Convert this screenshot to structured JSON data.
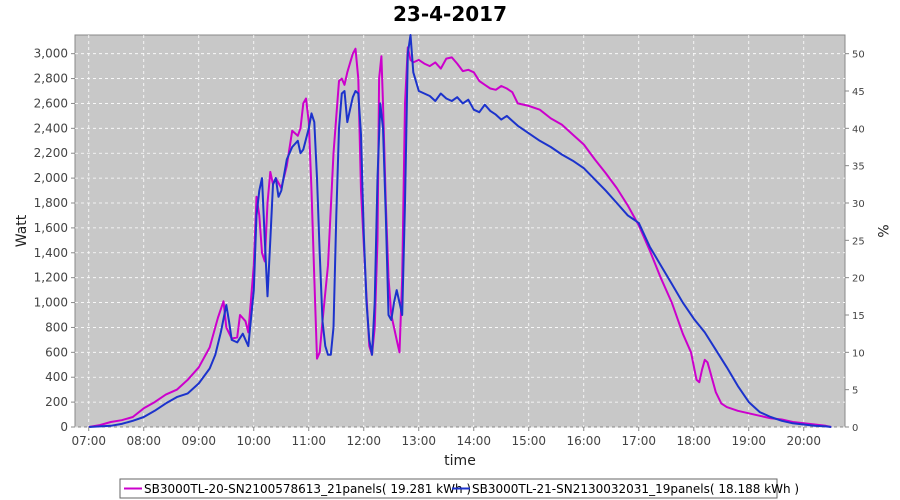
{
  "chart_data": {
    "type": "line",
    "title": "23-4-2017",
    "xlabel": "time",
    "ylabel": "Watt",
    "ylabel_right": "%",
    "xlim": [
      6.75,
      20.75
    ],
    "ylim": [
      0,
      3150
    ],
    "ylim_right": [
      0,
      52.5
    ],
    "x_ticks": [
      {
        "x": 7,
        "label": "07:00"
      },
      {
        "x": 8,
        "label": "08:00"
      },
      {
        "x": 9,
        "label": "09:00"
      },
      {
        "x": 10,
        "label": "10:00"
      },
      {
        "x": 11,
        "label": "11:00"
      },
      {
        "x": 12,
        "label": "12:00"
      },
      {
        "x": 13,
        "label": "13:00"
      },
      {
        "x": 14,
        "label": "14:00"
      },
      {
        "x": 15,
        "label": "15:00"
      },
      {
        "x": 16,
        "label": "16:00"
      },
      {
        "x": 17,
        "label": "17:00"
      },
      {
        "x": 18,
        "label": "18:00"
      },
      {
        "x": 19,
        "label": "19:00"
      },
      {
        "x": 20,
        "label": "20:00"
      }
    ],
    "y_ticks": [
      {
        "v": 0,
        "label": "0"
      },
      {
        "v": 200,
        "label": "200"
      },
      {
        "v": 400,
        "label": "400"
      },
      {
        "v": 600,
        "label": "600"
      },
      {
        "v": 800,
        "label": "800"
      },
      {
        "v": 1000,
        "label": "1,000"
      },
      {
        "v": 1200,
        "label": "1,200"
      },
      {
        "v": 1400,
        "label": "1,400"
      },
      {
        "v": 1600,
        "label": "1,600"
      },
      {
        "v": 1800,
        "label": "1,800"
      },
      {
        "v": 2000,
        "label": "2,000"
      },
      {
        "v": 2200,
        "label": "2,200"
      },
      {
        "v": 2400,
        "label": "2,400"
      },
      {
        "v": 2600,
        "label": "2,600"
      },
      {
        "v": 2800,
        "label": "2,800"
      },
      {
        "v": 3000,
        "label": "3,000"
      }
    ],
    "y_ticks_right": [
      {
        "v": 0,
        "label": "0"
      },
      {
        "v": 5,
        "label": "5"
      },
      {
        "v": 10,
        "label": "10"
      },
      {
        "v": 15,
        "label": "15"
      },
      {
        "v": 20,
        "label": "20"
      },
      {
        "v": 25,
        "label": "25"
      },
      {
        "v": 30,
        "label": "30"
      },
      {
        "v": 35,
        "label": "35"
      },
      {
        "v": 40,
        "label": "40"
      },
      {
        "v": 45,
        "label": "45"
      },
      {
        "v": 50,
        "label": "50"
      }
    ],
    "grid": true,
    "legend_position": "bottom",
    "series": [
      {
        "name": "SB3000TL-20-SN2100578613_21panels( 19.281 kWh )",
        "color": "#cc00cc",
        "points": [
          [
            7.0,
            0
          ],
          [
            7.2,
            15
          ],
          [
            7.4,
            40
          ],
          [
            7.6,
            55
          ],
          [
            7.8,
            80
          ],
          [
            8.0,
            150
          ],
          [
            8.2,
            200
          ],
          [
            8.4,
            260
          ],
          [
            8.6,
            300
          ],
          [
            8.8,
            380
          ],
          [
            9.0,
            480
          ],
          [
            9.2,
            640
          ],
          [
            9.35,
            880
          ],
          [
            9.45,
            1010
          ],
          [
            9.5,
            800
          ],
          [
            9.6,
            710
          ],
          [
            9.7,
            720
          ],
          [
            9.75,
            900
          ],
          [
            9.85,
            850
          ],
          [
            9.9,
            760
          ],
          [
            10.0,
            1300
          ],
          [
            10.05,
            1850
          ],
          [
            10.1,
            1700
          ],
          [
            10.15,
            1400
          ],
          [
            10.2,
            1330
          ],
          [
            10.25,
            1800
          ],
          [
            10.3,
            2050
          ],
          [
            10.35,
            1950
          ],
          [
            10.4,
            2000
          ],
          [
            10.5,
            1920
          ],
          [
            10.6,
            2100
          ],
          [
            10.7,
            2380
          ],
          [
            10.8,
            2340
          ],
          [
            10.85,
            2400
          ],
          [
            10.9,
            2600
          ],
          [
            10.95,
            2640
          ],
          [
            11.0,
            2450
          ],
          [
            11.05,
            1900
          ],
          [
            11.1,
            1200
          ],
          [
            11.15,
            550
          ],
          [
            11.2,
            600
          ],
          [
            11.25,
            850
          ],
          [
            11.35,
            1300
          ],
          [
            11.45,
            2200
          ],
          [
            11.55,
            2780
          ],
          [
            11.6,
            2800
          ],
          [
            11.65,
            2750
          ],
          [
            11.7,
            2850
          ],
          [
            11.8,
            3000
          ],
          [
            11.85,
            3040
          ],
          [
            11.9,
            2800
          ],
          [
            11.95,
            1900
          ],
          [
            12.05,
            1050
          ],
          [
            12.1,
            650
          ],
          [
            12.15,
            580
          ],
          [
            12.2,
            800
          ],
          [
            12.25,
            1500
          ],
          [
            12.28,
            2800
          ],
          [
            12.32,
            2980
          ],
          [
            12.35,
            2600
          ],
          [
            12.4,
            1800
          ],
          [
            12.45,
            1200
          ],
          [
            12.5,
            900
          ],
          [
            12.55,
            800
          ],
          [
            12.6,
            700
          ],
          [
            12.65,
            600
          ],
          [
            12.7,
            1200
          ],
          [
            12.75,
            2600
          ],
          [
            12.8,
            3050
          ],
          [
            12.85,
            2950
          ],
          [
            12.9,
            2930
          ],
          [
            13.0,
            2950
          ],
          [
            13.1,
            2920
          ],
          [
            13.2,
            2900
          ],
          [
            13.3,
            2930
          ],
          [
            13.4,
            2880
          ],
          [
            13.5,
            2960
          ],
          [
            13.6,
            2970
          ],
          [
            13.7,
            2920
          ],
          [
            13.8,
            2860
          ],
          [
            13.9,
            2870
          ],
          [
            14.0,
            2850
          ],
          [
            14.1,
            2780
          ],
          [
            14.2,
            2750
          ],
          [
            14.3,
            2720
          ],
          [
            14.4,
            2710
          ],
          [
            14.5,
            2740
          ],
          [
            14.6,
            2720
          ],
          [
            14.7,
            2690
          ],
          [
            14.8,
            2600
          ],
          [
            15.0,
            2580
          ],
          [
            15.2,
            2550
          ],
          [
            15.4,
            2480
          ],
          [
            15.6,
            2430
          ],
          [
            15.8,
            2350
          ],
          [
            16.0,
            2270
          ],
          [
            16.2,
            2150
          ],
          [
            16.4,
            2040
          ],
          [
            16.6,
            1920
          ],
          [
            16.8,
            1780
          ],
          [
            17.0,
            1620
          ],
          [
            17.2,
            1420
          ],
          [
            17.4,
            1200
          ],
          [
            17.6,
            1000
          ],
          [
            17.8,
            750
          ],
          [
            17.95,
            600
          ],
          [
            18.05,
            380
          ],
          [
            18.1,
            360
          ],
          [
            18.15,
            460
          ],
          [
            18.2,
            540
          ],
          [
            18.25,
            520
          ],
          [
            18.3,
            440
          ],
          [
            18.4,
            280
          ],
          [
            18.5,
            190
          ],
          [
            18.6,
            160
          ],
          [
            18.8,
            130
          ],
          [
            19.0,
            110
          ],
          [
            19.2,
            90
          ],
          [
            19.4,
            70
          ],
          [
            19.6,
            60
          ],
          [
            19.8,
            40
          ],
          [
            20.0,
            30
          ],
          [
            20.2,
            20
          ],
          [
            20.4,
            10
          ],
          [
            20.5,
            0
          ]
        ]
      },
      {
        "name": "SB3000TL-21-SN2130032031_19panels( 18.188 kWh )",
        "color": "#1c33cc",
        "points": [
          [
            7.0,
            0
          ],
          [
            7.2,
            5
          ],
          [
            7.4,
            10
          ],
          [
            7.6,
            25
          ],
          [
            7.8,
            50
          ],
          [
            8.0,
            80
          ],
          [
            8.2,
            130
          ],
          [
            8.4,
            190
          ],
          [
            8.6,
            240
          ],
          [
            8.8,
            270
          ],
          [
            9.0,
            350
          ],
          [
            9.2,
            470
          ],
          [
            9.3,
            580
          ],
          [
            9.4,
            760
          ],
          [
            9.5,
            980
          ],
          [
            9.55,
            850
          ],
          [
            9.6,
            700
          ],
          [
            9.7,
            680
          ],
          [
            9.8,
            750
          ],
          [
            9.85,
            700
          ],
          [
            9.9,
            650
          ],
          [
            10.0,
            1100
          ],
          [
            10.05,
            1700
          ],
          [
            10.1,
            1900
          ],
          [
            10.15,
            2000
          ],
          [
            10.2,
            1500
          ],
          [
            10.25,
            1050
          ],
          [
            10.3,
            1500
          ],
          [
            10.35,
            1950
          ],
          [
            10.4,
            2000
          ],
          [
            10.45,
            1850
          ],
          [
            10.5,
            1900
          ],
          [
            10.6,
            2150
          ],
          [
            10.7,
            2250
          ],
          [
            10.8,
            2300
          ],
          [
            10.85,
            2200
          ],
          [
            10.9,
            2230
          ],
          [
            11.0,
            2400
          ],
          [
            11.05,
            2520
          ],
          [
            11.1,
            2450
          ],
          [
            11.15,
            2000
          ],
          [
            11.2,
            1400
          ],
          [
            11.25,
            850
          ],
          [
            11.3,
            650
          ],
          [
            11.35,
            580
          ],
          [
            11.4,
            580
          ],
          [
            11.45,
            800
          ],
          [
            11.5,
            1700
          ],
          [
            11.55,
            2400
          ],
          [
            11.6,
            2680
          ],
          [
            11.65,
            2700
          ],
          [
            11.7,
            2450
          ],
          [
            11.75,
            2550
          ],
          [
            11.8,
            2650
          ],
          [
            11.85,
            2700
          ],
          [
            11.9,
            2680
          ],
          [
            11.95,
            2350
          ],
          [
            12.0,
            1550
          ],
          [
            12.05,
            1000
          ],
          [
            12.1,
            700
          ],
          [
            12.15,
            580
          ],
          [
            12.2,
            1000
          ],
          [
            12.25,
            2000
          ],
          [
            12.3,
            2600
          ],
          [
            12.35,
            2400
          ],
          [
            12.4,
            1700
          ],
          [
            12.45,
            900
          ],
          [
            12.5,
            860
          ],
          [
            12.55,
            1000
          ],
          [
            12.6,
            1100
          ],
          [
            12.65,
            1000
          ],
          [
            12.7,
            900
          ],
          [
            12.75,
            1800
          ],
          [
            12.8,
            3000
          ],
          [
            12.85,
            3150
          ],
          [
            12.9,
            2850
          ],
          [
            13.0,
            2700
          ],
          [
            13.2,
            2660
          ],
          [
            13.3,
            2620
          ],
          [
            13.4,
            2680
          ],
          [
            13.5,
            2640
          ],
          [
            13.6,
            2620
          ],
          [
            13.7,
            2650
          ],
          [
            13.8,
            2600
          ],
          [
            13.9,
            2630
          ],
          [
            14.0,
            2550
          ],
          [
            14.1,
            2530
          ],
          [
            14.2,
            2590
          ],
          [
            14.3,
            2540
          ],
          [
            14.4,
            2510
          ],
          [
            14.5,
            2470
          ],
          [
            14.6,
            2500
          ],
          [
            14.7,
            2460
          ],
          [
            14.8,
            2420
          ],
          [
            15.0,
            2360
          ],
          [
            15.2,
            2300
          ],
          [
            15.4,
            2250
          ],
          [
            15.6,
            2190
          ],
          [
            15.8,
            2140
          ],
          [
            16.0,
            2080
          ],
          [
            16.2,
            1990
          ],
          [
            16.4,
            1900
          ],
          [
            16.6,
            1800
          ],
          [
            16.8,
            1700
          ],
          [
            17.0,
            1640
          ],
          [
            17.2,
            1450
          ],
          [
            17.4,
            1300
          ],
          [
            17.6,
            1150
          ],
          [
            17.8,
            1000
          ],
          [
            18.0,
            870
          ],
          [
            18.2,
            760
          ],
          [
            18.4,
            620
          ],
          [
            18.6,
            480
          ],
          [
            18.8,
            330
          ],
          [
            19.0,
            200
          ],
          [
            19.2,
            120
          ],
          [
            19.4,
            80
          ],
          [
            19.6,
            50
          ],
          [
            19.8,
            30
          ],
          [
            20.0,
            20
          ],
          [
            20.2,
            10
          ],
          [
            20.4,
            5
          ],
          [
            20.5,
            0
          ]
        ]
      }
    ]
  }
}
